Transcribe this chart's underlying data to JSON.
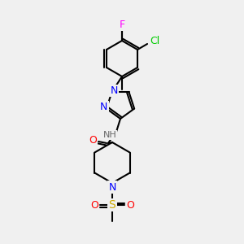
{
  "background_color": "#f0f0f0",
  "bond_color": "#000000",
  "title": "",
  "atoms": {
    "F": {
      "color": "#ff00ff",
      "symbol": "F"
    },
    "Cl": {
      "color": "#00cc00",
      "symbol": "Cl"
    },
    "N": {
      "color": "#0000ff",
      "symbol": "N"
    },
    "O": {
      "color": "#ff0000",
      "symbol": "O"
    },
    "S": {
      "color": "#cccc00",
      "symbol": "S"
    },
    "H": {
      "color": "#666666",
      "symbol": "H"
    },
    "C": {
      "color": "#000000",
      "symbol": ""
    }
  }
}
